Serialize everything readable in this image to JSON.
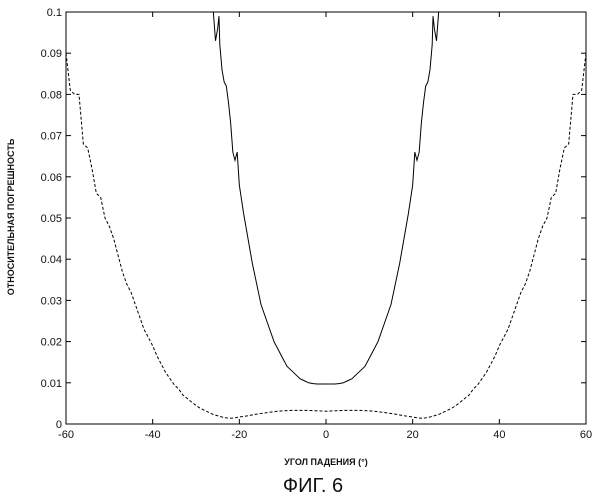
{
  "chart_data": {
    "type": "line",
    "title": "",
    "xlabel": "УГОЛ ПАДЕНИЯ (°)",
    "ylabel": "ОТНОСИТЕЛЬНАЯ ПОГРЕШНОСТЬ",
    "caption": "ФИГ. 6",
    "xlim": [
      -60,
      60
    ],
    "ylim": [
      0,
      0.1
    ],
    "xticks": [
      -60,
      -40,
      -20,
      0,
      20,
      40,
      60
    ],
    "yticks": [
      0,
      0.01,
      0.02,
      0.03,
      0.04,
      0.05,
      0.06,
      0.07,
      0.08,
      0.09,
      0.1
    ],
    "grid": false,
    "legend": "none",
    "series": [
      {
        "style": "solid",
        "color": "#000000",
        "x": [
          -26,
          -25.5,
          -25,
          -24.7,
          -24.5,
          -24,
          -23.5,
          -23,
          -22.5,
          -22,
          -21.5,
          -21,
          -20.5,
          -20,
          -19,
          -18,
          -17,
          -16,
          -15,
          -14,
          -13,
          -12,
          -11,
          -10,
          -9,
          -8,
          -7,
          -6,
          -5,
          -4,
          -3,
          -2,
          -1,
          0,
          1,
          2,
          3,
          4,
          5,
          6,
          7,
          8,
          9,
          10,
          11,
          12,
          13,
          14,
          15,
          16,
          17,
          18,
          19,
          20,
          20.5,
          21,
          21.5,
          22,
          22.5,
          23,
          23.5,
          24,
          24.5,
          24.7,
          25,
          25.5,
          26
        ],
        "y": [
          0.1,
          0.093,
          0.096,
          0.099,
          0.092,
          0.086,
          0.083,
          0.082,
          0.078,
          0.073,
          0.066,
          0.064,
          0.066,
          0.058,
          0.051,
          0.045,
          0.039,
          0.034,
          0.029,
          0.026,
          0.023,
          0.02,
          0.018,
          0.016,
          0.014,
          0.013,
          0.012,
          0.011,
          0.0105,
          0.01,
          0.0098,
          0.0097,
          0.0097,
          0.0097,
          0.0097,
          0.0097,
          0.0098,
          0.01,
          0.0105,
          0.011,
          0.012,
          0.013,
          0.014,
          0.016,
          0.018,
          0.02,
          0.023,
          0.026,
          0.029,
          0.034,
          0.039,
          0.045,
          0.051,
          0.058,
          0.066,
          0.064,
          0.066,
          0.073,
          0.078,
          0.082,
          0.083,
          0.086,
          0.092,
          0.099,
          0.096,
          0.093,
          0.1
        ]
      },
      {
        "style": "dashed",
        "color": "#000000",
        "x": [
          -60,
          -59,
          -58,
          -57,
          -56,
          -55,
          -54,
          -53,
          -52,
          -51,
          -50,
          -49,
          -48,
          -47,
          -46,
          -45,
          -44,
          -43,
          -42,
          -41,
          -40,
          -39,
          -38,
          -37,
          -36,
          -35,
          -34,
          -33,
          -32,
          -31,
          -30,
          -29,
          -28,
          -27,
          -26,
          -25,
          -24,
          -23,
          -22,
          -21,
          -20,
          -18,
          -16,
          -14,
          -12,
          -10,
          -8,
          -6,
          -4,
          -2,
          0,
          2,
          4,
          6,
          8,
          10,
          12,
          14,
          16,
          18,
          20,
          21,
          22,
          23,
          24,
          25,
          26,
          27,
          28,
          29,
          30,
          31,
          32,
          33,
          34,
          35,
          36,
          37,
          38,
          39,
          40,
          41,
          42,
          43,
          44,
          45,
          46,
          47,
          48,
          49,
          50,
          51,
          52,
          53,
          54,
          55,
          56,
          57,
          58,
          59,
          60
        ],
        "y": [
          0.09,
          0.081,
          0.08,
          0.08,
          0.068,
          0.067,
          0.062,
          0.056,
          0.055,
          0.05,
          0.048,
          0.045,
          0.041,
          0.037,
          0.034,
          0.032,
          0.029,
          0.026,
          0.023,
          0.021,
          0.019,
          0.0165,
          0.0145,
          0.0125,
          0.011,
          0.0095,
          0.0085,
          0.007,
          0.0062,
          0.0053,
          0.0045,
          0.0038,
          0.0033,
          0.0028,
          0.0023,
          0.002,
          0.0017,
          0.0015,
          0.0014,
          0.0015,
          0.0017,
          0.002,
          0.0024,
          0.0027,
          0.003,
          0.0032,
          0.0033,
          0.0033,
          0.0033,
          0.0032,
          0.0031,
          0.0032,
          0.0033,
          0.0033,
          0.0033,
          0.0032,
          0.003,
          0.0027,
          0.0024,
          0.002,
          0.0017,
          0.0015,
          0.0014,
          0.0015,
          0.0017,
          0.002,
          0.0023,
          0.0028,
          0.0033,
          0.0038,
          0.0045,
          0.0053,
          0.0062,
          0.007,
          0.0085,
          0.0095,
          0.011,
          0.0125,
          0.0145,
          0.0165,
          0.019,
          0.021,
          0.023,
          0.026,
          0.029,
          0.032,
          0.034,
          0.037,
          0.041,
          0.045,
          0.048,
          0.05,
          0.055,
          0.056,
          0.062,
          0.067,
          0.068,
          0.08,
          0.08,
          0.081,
          0.09
        ]
      }
    ]
  }
}
